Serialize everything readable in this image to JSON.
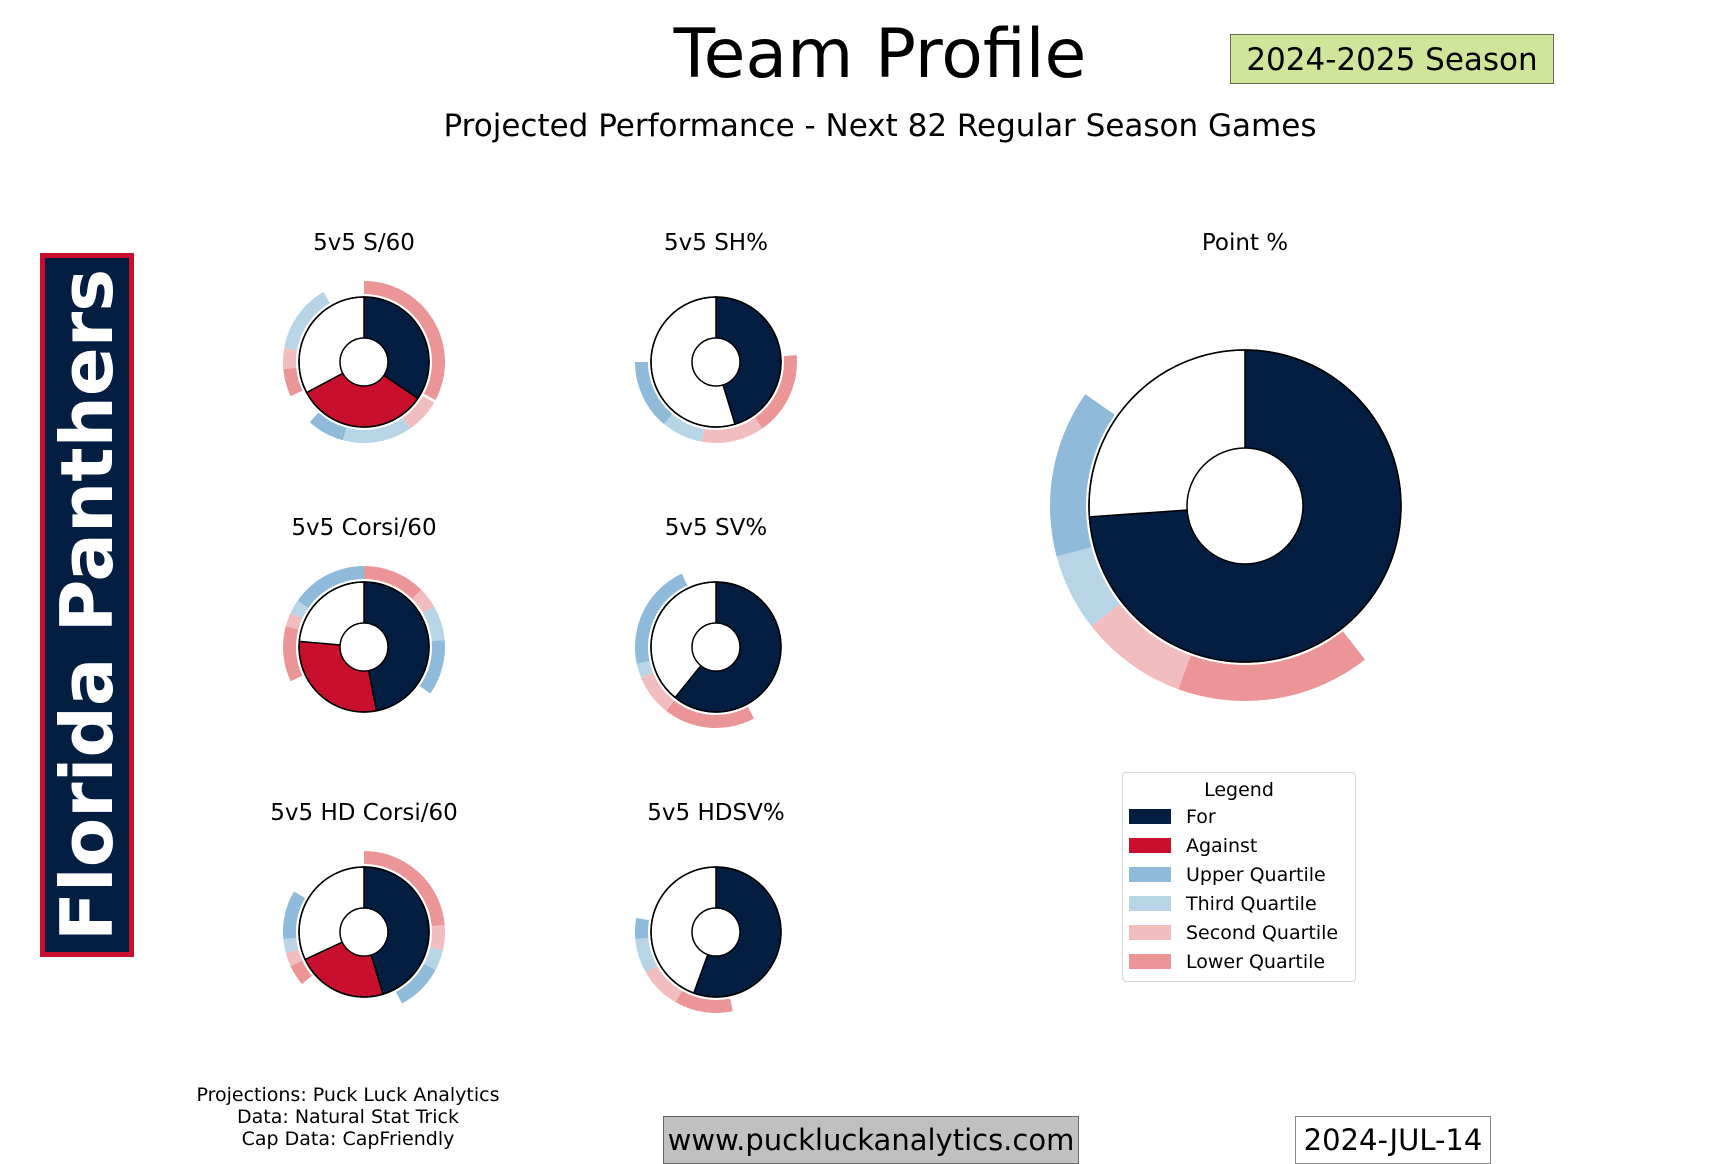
{
  "header": {
    "title": "Team Profile",
    "season": "2024-2025 Season",
    "subtitle": "Projected Performance - Next 82 Regular Season Games"
  },
  "team": {
    "name": "Florida Panthers",
    "primary_color": "#041e42",
    "secondary_color": "#c8102e"
  },
  "colors": {
    "for": "#041e42",
    "against": "#c8102e",
    "upper_quartile": "#8fbad9",
    "third_quartile": "#b8d5e8",
    "second_quartile": "#f2bdbe",
    "lower_quartile": "#ec9597"
  },
  "legend": {
    "title": "Legend",
    "items": [
      {
        "key": "for",
        "label": "For"
      },
      {
        "key": "against",
        "label": "Against"
      },
      {
        "key": "upper_quartile",
        "label": "Upper Quartile"
      },
      {
        "key": "third_quartile",
        "label": "Third Quartile"
      },
      {
        "key": "second_quartile",
        "label": "Second Quartile"
      },
      {
        "key": "lower_quartile",
        "label": "Lower Quartile"
      }
    ]
  },
  "chart_data": [
    {
      "type": "pie",
      "title": "5v5 S/60",
      "for_deg": 124,
      "against_deg": 118,
      "quartile_spans_deg": [
        [
          0,
          118
        ],
        [
          120,
          145
        ],
        [
          145,
          195
        ],
        [
          195,
          222
        ],
        [
          245,
          265
        ],
        [
          265,
          280
        ],
        [
          280,
          330
        ]
      ]
    },
    {
      "type": "pie",
      "title": "5v5 SH%",
      "for_deg": 163,
      "against_deg": 0,
      "quartile_spans_deg": [
        [
          85,
          145
        ],
        [
          145,
          190
        ],
        [
          190,
          220
        ],
        [
          220,
          270
        ]
      ]
    },
    {
      "type": "pie",
      "title": "5v5 Corsi/60",
      "for_deg": 169,
      "against_deg": 106,
      "quartile_spans_deg": [
        [
          0,
          45
        ],
        [
          45,
          60
        ],
        [
          60,
          85
        ],
        [
          85,
          125
        ],
        [
          245,
          285
        ],
        [
          285,
          295
        ],
        [
          295,
          305
        ],
        [
          305,
          360
        ]
      ]
    },
    {
      "type": "pie",
      "title": "5v5 SV%",
      "for_deg": 219,
      "against_deg": 0,
      "quartile_spans_deg": [
        [
          152,
          218
        ],
        [
          218,
          248
        ],
        [
          248,
          258
        ],
        [
          258,
          335
        ]
      ]
    },
    {
      "type": "pie",
      "title": "5v5 HD Corsi/60",
      "for_deg": 163,
      "against_deg": 82,
      "quartile_spans_deg": [
        [
          0,
          85
        ],
        [
          85,
          103
        ],
        [
          103,
          118
        ],
        [
          118,
          152
        ],
        [
          230,
          245
        ],
        [
          245,
          255
        ],
        [
          255,
          265
        ],
        [
          265,
          300
        ]
      ]
    },
    {
      "type": "pie",
      "title": "5v5 HDSV%",
      "for_deg": 200,
      "against_deg": 0,
      "quartile_spans_deg": [
        [
          168,
          210
        ],
        [
          210,
          240
        ],
        [
          240,
          265
        ],
        [
          265,
          280
        ]
      ]
    },
    {
      "type": "pie",
      "title": "Point %",
      "for_deg": 266,
      "against_deg": 0,
      "quartile_spans_deg": [
        [
          142,
          200
        ],
        [
          200,
          232
        ],
        [
          232,
          255
        ],
        [
          255,
          305
        ]
      ]
    }
  ],
  "footer": {
    "credits": [
      "Projections: Puck Luck Analytics",
      "Data: Natural Stat Trick",
      "Cap Data: CapFriendly"
    ],
    "website": "www.puckluckanalytics.com",
    "date": "2024-JUL-14"
  }
}
